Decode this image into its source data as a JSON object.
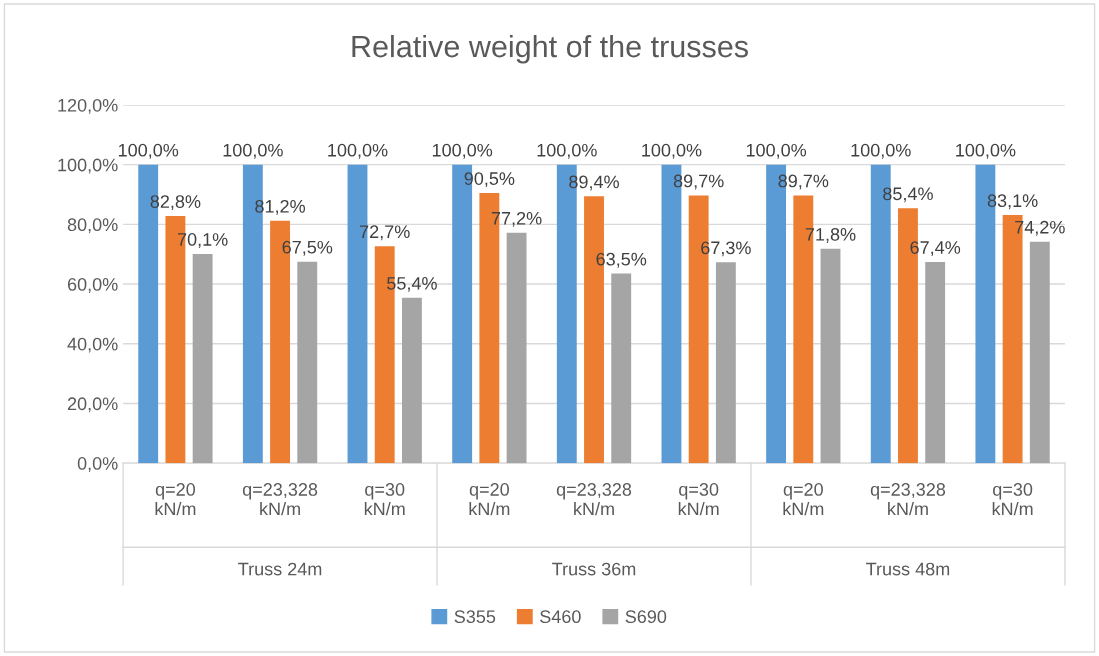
{
  "chart_data": {
    "type": "bar",
    "title": "Relative weight of the trusses",
    "categories": [
      "q=20 kN/m",
      "q=23,328 kN/m",
      "q=30 kN/m",
      "q=20 kN/m",
      "q=23,328 kN/m",
      "q=30 kN/m",
      "q=20 kN/m",
      "q=23,328 kN/m",
      "q=30 kN/m"
    ],
    "annotations": [
      "Truss 24m",
      "Truss 36m",
      "Truss 48m"
    ],
    "series": [
      {
        "name": "S355",
        "color": "#5b9bd5",
        "values": [
          100.0,
          100.0,
          100.0,
          100.0,
          100.0,
          100.0,
          100.0,
          100.0,
          100.0
        ],
        "value_labels": [
          "100,0%",
          "100,0%",
          "100,0%",
          "100,0%",
          "100,0%",
          "100,0%",
          "100,0%",
          "100,0%",
          "100,0%"
        ]
      },
      {
        "name": "S460",
        "color": "#ed7d31",
        "values": [
          82.8,
          81.2,
          72.7,
          90.5,
          89.4,
          89.7,
          89.7,
          85.4,
          83.1
        ],
        "value_labels": [
          "82,8%",
          "81,2%",
          "72,7%",
          "90,5%",
          "89,4%",
          "89,7%",
          "89,7%",
          "85,4%",
          "83,1%"
        ]
      },
      {
        "name": "S690",
        "color": "#a5a5a5",
        "values": [
          70.1,
          67.5,
          55.4,
          77.2,
          63.5,
          67.3,
          71.8,
          67.4,
          74.2
        ],
        "value_labels": [
          "70,1%",
          "67,5%",
          "55,4%",
          "77,2%",
          "63,5%",
          "67,3%",
          "71,8%",
          "67,4%",
          "74,2%"
        ]
      }
    ],
    "ylim": [
      0,
      120
    ],
    "yticks": [
      {
        "value": 0,
        "label": "0,0%"
      },
      {
        "value": 20,
        "label": "20,0%"
      },
      {
        "value": 40,
        "label": "40,0%"
      },
      {
        "value": 60,
        "label": "60,0%"
      },
      {
        "value": 80,
        "label": "80,0%"
      },
      {
        "value": 100,
        "label": "100,0%"
      },
      {
        "value": 120,
        "label": "120,0%"
      }
    ],
    "grid": "y",
    "legend": "bottom"
  }
}
